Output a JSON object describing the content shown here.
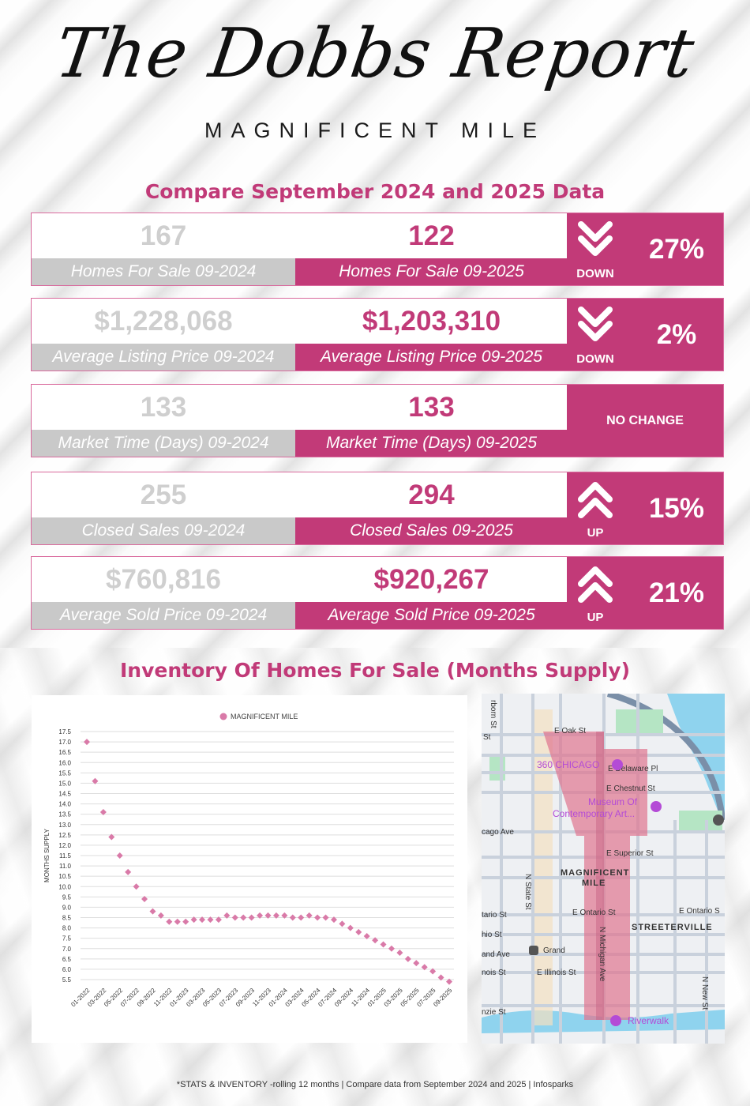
{
  "header": {
    "title": "The Dobbs Report",
    "subtitle": "MAGNIFICENT MILE",
    "compare_title": "Compare September 2024 and 2025 Data"
  },
  "colors": {
    "accent": "#c23a78",
    "prev_gray": "#c9c9c9",
    "prev_value_gray": "#cfcfcf",
    "marker": "#d97aa8"
  },
  "stats": [
    {
      "prev_value": "167",
      "prev_label": "Homes For Sale 09-2024",
      "cur_value": "122",
      "cur_label": "Homes For Sale 09-2025",
      "direction": "DOWN",
      "direction_icon": "double-chevron-down-icon",
      "change": "27%"
    },
    {
      "prev_value": "$1,228,068",
      "prev_label": "Average Listing Price 09-2024",
      "cur_value": "$1,203,310",
      "cur_label": "Average Listing Price 09-2025",
      "direction": "DOWN",
      "direction_icon": "double-chevron-down-icon",
      "change": "2%"
    },
    {
      "prev_value": "133",
      "prev_label": "Market Time (Days) 09-2024",
      "cur_value": "133",
      "cur_label": "Market Time (Days) 09-2025",
      "direction": "NO CHANGE",
      "direction_icon": "",
      "change": ""
    },
    {
      "prev_value": "255",
      "prev_label": "Closed Sales 09-2024",
      "cur_value": "294",
      "cur_label": "Closed Sales 09-2025",
      "direction": "UP",
      "direction_icon": "double-chevron-up-icon",
      "change": "15%"
    },
    {
      "prev_value": "$760,816",
      "prev_label": "Average Sold Price 09-2024",
      "cur_value": "$920,267",
      "cur_label": "Average Sold Price 09-2025",
      "direction": "UP",
      "direction_icon": "double-chevron-up-icon",
      "change": "21%"
    }
  ],
  "inventory_title": "Inventory Of Homes For Sale (Months Supply)",
  "chart_data": {
    "type": "scatter",
    "title": "",
    "legend": [
      "MAGNIFICENT MILE"
    ],
    "legend_position": "top-center",
    "xlabel": "",
    "ylabel": "MONTHS SUPPLY",
    "ylim": [
      5.5,
      17.5
    ],
    "yticks": [
      "5.5",
      "6.0",
      "6.5",
      "7.0",
      "7.5",
      "8.0",
      "8.5",
      "9.0",
      "9.5",
      "10.0",
      "10.5",
      "11.0",
      "11.5",
      "12.0",
      "12.5",
      "13.0",
      "13.5",
      "14.0",
      "14.5",
      "15.0",
      "15.5",
      "16.0",
      "16.5",
      "17.0",
      "17.5"
    ],
    "grid": true,
    "x": [
      "01-2022",
      "02-2022",
      "03-2022",
      "04-2022",
      "05-2022",
      "06-2022",
      "07-2022",
      "08-2022",
      "09-2022",
      "10-2022",
      "11-2022",
      "12-2022",
      "01-2023",
      "02-2023",
      "03-2023",
      "04-2023",
      "05-2023",
      "06-2023",
      "07-2023",
      "08-2023",
      "09-2023",
      "10-2023",
      "11-2023",
      "12-2023",
      "01-2024",
      "02-2024",
      "03-2024",
      "04-2024",
      "05-2024",
      "06-2024",
      "07-2024",
      "08-2024",
      "09-2024",
      "10-2024",
      "11-2024",
      "12-2024",
      "01-2025",
      "02-2025",
      "03-2025",
      "04-2025",
      "05-2025",
      "06-2025",
      "07-2025",
      "08-2025",
      "09-2025"
    ],
    "xtick_labels": [
      "01-2022",
      "03-2022",
      "05-2022",
      "07-2022",
      "09-2022",
      "11-2022",
      "01-2023",
      "03-2023",
      "05-2023",
      "07-2023",
      "09-2023",
      "11-2023",
      "01-2024",
      "03-2024",
      "05-2024",
      "07-2024",
      "09-2024",
      "11-2024",
      "01-2025",
      "03-2025",
      "05-2025",
      "07-2025",
      "09-2025"
    ],
    "series": [
      {
        "name": "MAGNIFICENT MILE",
        "values": [
          17.0,
          15.1,
          13.6,
          12.4,
          11.5,
          10.7,
          10.0,
          9.4,
          8.8,
          8.6,
          8.3,
          8.3,
          8.3,
          8.4,
          8.4,
          8.4,
          8.4,
          8.6,
          8.5,
          8.5,
          8.5,
          8.6,
          8.6,
          8.6,
          8.6,
          8.5,
          8.5,
          8.6,
          8.5,
          8.5,
          8.4,
          8.2,
          8.0,
          7.8,
          7.6,
          7.4,
          7.2,
          7.0,
          6.8,
          6.5,
          6.3,
          6.1,
          5.9,
          5.6,
          5.4
        ]
      }
    ]
  },
  "map": {
    "labels": {
      "oak": "E Oak St",
      "chicago360": "360 CHICAGO",
      "delaware": "E Delaware Pl",
      "chestnut": "E Chestnut St",
      "mca1": "Museum Of",
      "mca2": "Contemporary Art...",
      "chicago_ave": "cago Ave",
      "superior": "E Superior St",
      "mm1": "MAGNIFICENT",
      "mm2": "MILE",
      "state": "N State St",
      "ontario_w": "tario St",
      "ontario": "E Ontario St",
      "ontario_e": "E Ontario S",
      "streeterville": "STREETERVILLE",
      "ohio": "hio St",
      "grand_ave": "and Ave",
      "grand": "Grand",
      "illinois_w": "nois St",
      "illinois": "E Illinois St",
      "michigan": "N Michigan Ave",
      "newst": "N New St",
      "kinzie": "nzie St",
      "riverwalk": "Riverwalk",
      "dearborn": "rborn St",
      "st_left": "St"
    }
  },
  "footer": "*STATS  & INVENTORY -rolling 12 months | Compare data from September  2024 and 2025 | Infosparks"
}
